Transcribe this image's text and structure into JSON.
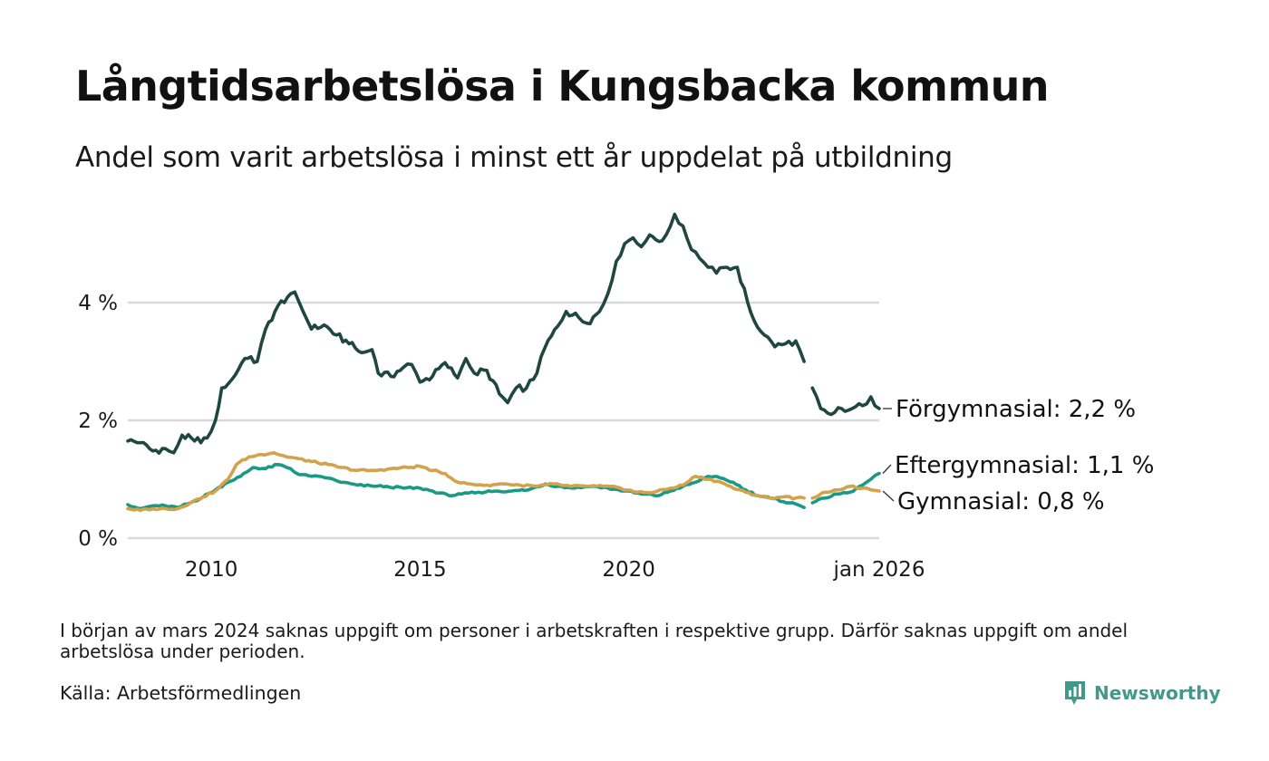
{
  "title": "Långtidsarbetslösa i Kungsbacka kommun",
  "subtitle": "Andel som varit arbetslösa i minst ett år uppdelat på utbildning",
  "note": "I början av mars 2024 saknas uppgift om personer i arbetskraften i respektive grupp. Därför saknas uppgift om andel arbetslösa under perioden.",
  "source": "Källa: Arbetsförmedlingen",
  "brand": "Newsworthy",
  "colors": {
    "forgymnasial": "#1f4640",
    "eftergymnasial": "#1a9a85",
    "gymnasial": "#d4a24a",
    "grid": "#d9d9d9",
    "brand": "#3f9a8b"
  },
  "chart_data": {
    "type": "line",
    "title": "Långtidsarbetslösa i Kungsbacka kommun",
    "ylabel": "",
    "xlabel": "",
    "ylim": [
      0,
      5.6
    ],
    "xlim": [
      2008.0,
      2026.0
    ],
    "y_ticks": [
      {
        "value": 0,
        "label": "0 %"
      },
      {
        "value": 2,
        "label": "2 %"
      },
      {
        "value": 4,
        "label": "4 %"
      }
    ],
    "x_ticks": [
      {
        "value": 2010,
        "label": "2010"
      },
      {
        "value": 2015,
        "label": "2015"
      },
      {
        "value": 2020,
        "label": "2020"
      },
      {
        "value": 2026.0,
        "label": "jan 2026"
      }
    ],
    "gap": [
      2024.2,
      2024.4
    ],
    "series": [
      {
        "name": "Förgymnasial",
        "end_label": "Förgymnasial: 2,2 %",
        "color_key": "forgymnasial",
        "points": [
          [
            2008.0,
            1.65
          ],
          [
            2008.3,
            1.62
          ],
          [
            2008.6,
            1.48
          ],
          [
            2008.9,
            1.52
          ],
          [
            2009.1,
            1.45
          ],
          [
            2009.3,
            1.75
          ],
          [
            2009.6,
            1.65
          ],
          [
            2009.9,
            1.7
          ],
          [
            2010.1,
            2.0
          ],
          [
            2010.25,
            2.55
          ],
          [
            2010.5,
            2.7
          ],
          [
            2010.8,
            3.05
          ],
          [
            2011.1,
            3.0
          ],
          [
            2011.3,
            3.55
          ],
          [
            2011.6,
            3.95
          ],
          [
            2011.9,
            4.15
          ],
          [
            2012.0,
            4.18
          ],
          [
            2012.2,
            3.85
          ],
          [
            2012.4,
            3.55
          ],
          [
            2012.7,
            3.62
          ],
          [
            2013.0,
            3.45
          ],
          [
            2013.3,
            3.3
          ],
          [
            2013.6,
            3.15
          ],
          [
            2013.85,
            3.2
          ],
          [
            2014.0,
            2.8
          ],
          [
            2014.3,
            2.75
          ],
          [
            2014.6,
            2.9
          ],
          [
            2014.8,
            2.95
          ],
          [
            2015.0,
            2.65
          ],
          [
            2015.3,
            2.75
          ],
          [
            2015.6,
            2.98
          ],
          [
            2015.9,
            2.72
          ],
          [
            2016.1,
            3.05
          ],
          [
            2016.3,
            2.8
          ],
          [
            2016.6,
            2.85
          ],
          [
            2016.9,
            2.45
          ],
          [
            2017.1,
            2.3
          ],
          [
            2017.3,
            2.55
          ],
          [
            2017.55,
            2.55
          ],
          [
            2017.8,
            2.8
          ],
          [
            2018.0,
            3.25
          ],
          [
            2018.3,
            3.6
          ],
          [
            2018.5,
            3.85
          ],
          [
            2018.8,
            3.75
          ],
          [
            2019.0,
            3.65
          ],
          [
            2019.3,
            3.85
          ],
          [
            2019.5,
            4.15
          ],
          [
            2019.7,
            4.7
          ],
          [
            2019.9,
            5.0
          ],
          [
            2020.1,
            5.1
          ],
          [
            2020.3,
            4.95
          ],
          [
            2020.5,
            5.15
          ],
          [
            2020.8,
            5.05
          ],
          [
            2021.0,
            5.3
          ],
          [
            2021.1,
            5.5
          ],
          [
            2021.3,
            5.3
          ],
          [
            2021.5,
            4.9
          ],
          [
            2021.7,
            4.75
          ],
          [
            2021.9,
            4.6
          ],
          [
            2022.1,
            4.5
          ],
          [
            2022.35,
            4.6
          ],
          [
            2022.6,
            4.6
          ],
          [
            2022.85,
            4.0
          ],
          [
            2023.0,
            3.7
          ],
          [
            2023.25,
            3.45
          ],
          [
            2023.5,
            3.25
          ],
          [
            2023.75,
            3.3
          ],
          [
            2024.0,
            3.35
          ],
          [
            2024.2,
            3.0
          ],
          [
            2024.4,
            2.55
          ],
          [
            2024.6,
            2.2
          ],
          [
            2024.85,
            2.1
          ],
          [
            2025.1,
            2.2
          ],
          [
            2025.35,
            2.2
          ],
          [
            2025.6,
            2.25
          ],
          [
            2025.8,
            2.4
          ],
          [
            2026.0,
            2.2
          ]
        ]
      },
      {
        "name": "Eftergymnasial",
        "end_label": "Eftergymnasial: 1,1 %",
        "color_key": "eftergymnasial",
        "points": [
          [
            2008.0,
            0.57
          ],
          [
            2008.3,
            0.5
          ],
          [
            2008.6,
            0.55
          ],
          [
            2008.9,
            0.55
          ],
          [
            2009.2,
            0.52
          ],
          [
            2009.5,
            0.6
          ],
          [
            2009.8,
            0.7
          ],
          [
            2010.1,
            0.82
          ],
          [
            2010.4,
            0.95
          ],
          [
            2010.7,
            1.05
          ],
          [
            2011.0,
            1.2
          ],
          [
            2011.3,
            1.18
          ],
          [
            2011.6,
            1.25
          ],
          [
            2011.9,
            1.18
          ],
          [
            2012.1,
            1.08
          ],
          [
            2012.4,
            1.05
          ],
          [
            2012.8,
            1.02
          ],
          [
            2013.1,
            0.95
          ],
          [
            2013.5,
            0.9
          ],
          [
            2013.9,
            0.88
          ],
          [
            2014.2,
            0.88
          ],
          [
            2014.6,
            0.85
          ],
          [
            2015.0,
            0.85
          ],
          [
            2015.3,
            0.8
          ],
          [
            2015.7,
            0.72
          ],
          [
            2016.0,
            0.75
          ],
          [
            2016.4,
            0.78
          ],
          [
            2016.8,
            0.8
          ],
          [
            2017.2,
            0.8
          ],
          [
            2017.6,
            0.82
          ],
          [
            2018.0,
            0.92
          ],
          [
            2018.3,
            0.88
          ],
          [
            2018.7,
            0.85
          ],
          [
            2019.1,
            0.88
          ],
          [
            2019.5,
            0.85
          ],
          [
            2019.9,
            0.8
          ],
          [
            2020.3,
            0.75
          ],
          [
            2020.7,
            0.72
          ],
          [
            2021.0,
            0.8
          ],
          [
            2021.3,
            0.88
          ],
          [
            2021.6,
            0.95
          ],
          [
            2021.9,
            1.05
          ],
          [
            2022.2,
            1.02
          ],
          [
            2022.5,
            0.95
          ],
          [
            2022.8,
            0.82
          ],
          [
            2023.1,
            0.72
          ],
          [
            2023.4,
            0.68
          ],
          [
            2023.7,
            0.62
          ],
          [
            2024.0,
            0.58
          ],
          [
            2024.2,
            0.52
          ],
          [
            2024.4,
            0.6
          ],
          [
            2024.7,
            0.68
          ],
          [
            2025.0,
            0.75
          ],
          [
            2025.3,
            0.78
          ],
          [
            2025.6,
            0.9
          ],
          [
            2025.8,
            1.0
          ],
          [
            2026.0,
            1.1
          ]
        ]
      },
      {
        "name": "Gymnasial",
        "end_label": "Gymnasial: 0,8 %",
        "color_key": "gymnasial",
        "points": [
          [
            2008.0,
            0.5
          ],
          [
            2008.3,
            0.47
          ],
          [
            2008.6,
            0.5
          ],
          [
            2008.9,
            0.5
          ],
          [
            2009.2,
            0.5
          ],
          [
            2009.5,
            0.6
          ],
          [
            2009.8,
            0.7
          ],
          [
            2010.1,
            0.8
          ],
          [
            2010.4,
            1.0
          ],
          [
            2010.6,
            1.25
          ],
          [
            2010.9,
            1.38
          ],
          [
            2011.2,
            1.42
          ],
          [
            2011.5,
            1.45
          ],
          [
            2011.8,
            1.38
          ],
          [
            2012.1,
            1.35
          ],
          [
            2012.4,
            1.3
          ],
          [
            2012.8,
            1.25
          ],
          [
            2013.1,
            1.2
          ],
          [
            2013.5,
            1.15
          ],
          [
            2013.9,
            1.15
          ],
          [
            2014.3,
            1.18
          ],
          [
            2014.7,
            1.2
          ],
          [
            2015.0,
            1.22
          ],
          [
            2015.3,
            1.15
          ],
          [
            2015.6,
            1.1
          ],
          [
            2015.9,
            0.95
          ],
          [
            2016.2,
            0.92
          ],
          [
            2016.6,
            0.9
          ],
          [
            2017.0,
            0.92
          ],
          [
            2017.4,
            0.9
          ],
          [
            2017.8,
            0.88
          ],
          [
            2018.2,
            0.92
          ],
          [
            2018.6,
            0.88
          ],
          [
            2019.0,
            0.88
          ],
          [
            2019.4,
            0.88
          ],
          [
            2019.8,
            0.85
          ],
          [
            2020.2,
            0.78
          ],
          [
            2020.6,
            0.78
          ],
          [
            2021.0,
            0.85
          ],
          [
            2021.3,
            0.9
          ],
          [
            2021.6,
            1.05
          ],
          [
            2021.9,
            1.0
          ],
          [
            2022.2,
            0.95
          ],
          [
            2022.5,
            0.85
          ],
          [
            2022.8,
            0.78
          ],
          [
            2023.1,
            0.72
          ],
          [
            2023.4,
            0.68
          ],
          [
            2023.7,
            0.7
          ],
          [
            2024.0,
            0.68
          ],
          [
            2024.2,
            0.68
          ],
          [
            2024.4,
            0.68
          ],
          [
            2024.7,
            0.78
          ],
          [
            2025.0,
            0.82
          ],
          [
            2025.3,
            0.88
          ],
          [
            2025.6,
            0.85
          ],
          [
            2025.8,
            0.82
          ],
          [
            2026.0,
            0.8
          ]
        ]
      }
    ]
  }
}
